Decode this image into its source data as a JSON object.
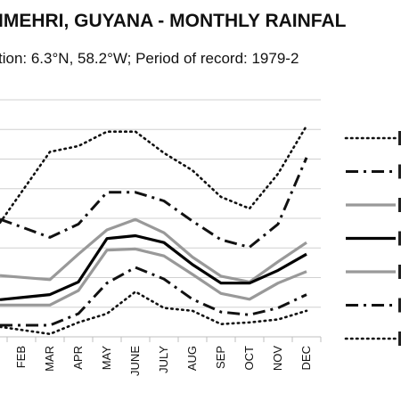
{
  "title": "IMEHRI, GUYANA - MONTHLY RAINFAL",
  "subtitle": "tion: 6.3°N, 58.2°W; Period of record: 1979-2",
  "chart_data": {
    "type": "line",
    "categories": [
      "FEB",
      "MAR",
      "APR",
      "MAY",
      "JUNE",
      "JULY",
      "AUG",
      "SEP",
      "OCT",
      "NOV",
      "DEC"
    ],
    "visible_categories_note_free": true,
    "series": [
      {
        "name": "",
        "style": "dotted",
        "color": "#111111",
        "values": [
          240,
          310,
          320,
          345,
          345,
          308,
          278,
          232,
          212,
          272,
          355
        ]
      },
      {
        "name": "",
        "style": "dashdot",
        "color": "#111111",
        "values": [
          180,
          162,
          185,
          240,
          240,
          225,
          190,
          158,
          145,
          185,
          300
        ]
      },
      {
        "name": "",
        "style": "solid",
        "color": "#999999",
        "values": [
          93,
          89,
          133,
          175,
          193,
          170,
          128,
          95,
          85,
          120,
          153
        ]
      },
      {
        "name": "",
        "style": "solid",
        "color": "#000000",
        "values": [
          58,
          63,
          85,
          160,
          165,
          153,
          115,
          83,
          83,
          105,
          133
        ]
      },
      {
        "name": "",
        "style": "solid",
        "color": "#999999",
        "values": [
          45,
          45,
          70,
          140,
          142,
          130,
          98,
          65,
          55,
          83,
          103
        ]
      },
      {
        "name": "",
        "style": "dashdot",
        "color": "#111111",
        "values": [
          10,
          10,
          30,
          83,
          110,
          90,
          55,
          33,
          28,
          40,
          63
        ]
      },
      {
        "name": "",
        "style": "dotted",
        "color": "#111111",
        "values": [
          2,
          -5,
          15,
          30,
          68,
          40,
          35,
          12,
          15,
          20,
          35
        ]
      }
    ],
    "ylim": [
      -10,
      400
    ],
    "grid": true
  }
}
